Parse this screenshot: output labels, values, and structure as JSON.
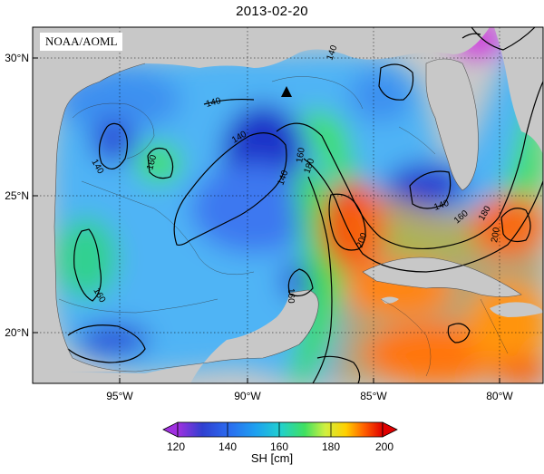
{
  "title": "2013-02-20",
  "credit": "NOAA/AOML",
  "axes": {
    "y_ticks": [
      "30°N",
      "25°N",
      "20°N"
    ],
    "x_ticks": [
      "95°W",
      "90°W",
      "85°W",
      "80°W"
    ]
  },
  "contour_labels": [
    "140",
    "140",
    "140",
    "140",
    "140",
    "140",
    "160",
    "160",
    "160",
    "160",
    "160",
    "180",
    "180",
    "200",
    "200"
  ],
  "colorbar": {
    "title": "SH [cm]",
    "ticks": [
      "120",
      "140",
      "160",
      "180",
      "200"
    ],
    "range": [
      120,
      200
    ],
    "colors": [
      "#a030e0",
      "#3040d0",
      "#1ea0f0",
      "#20d0d0",
      "#40e060",
      "#d0f040",
      "#ffd000",
      "#ff6000",
      "#e00000"
    ]
  },
  "colors": {
    "land": "#c8c8c8",
    "deep_blue": "#1e30c8",
    "blue": "#3c78f0",
    "light_blue": "#50b4f5",
    "cyan": "#20d0d0",
    "green": "#3cdc50",
    "yellow": "#f0f030",
    "orange": "#ff8c00",
    "red": "#f02000",
    "magenta": "#d030e0"
  }
}
